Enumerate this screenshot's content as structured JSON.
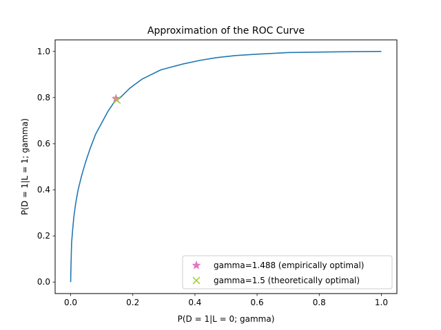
{
  "chart_data": {
    "type": "line",
    "title": "Approximation of the ROC Curve",
    "xlabel": "P(D = 1|L = 0; gamma)",
    "ylabel": "P(D = 1|L = 1; gamma)",
    "xlim": [
      -0.05,
      1.05
    ],
    "ylim": [
      -0.05,
      1.05
    ],
    "xticks": [
      "0.0",
      "0.2",
      "0.4",
      "0.6",
      "0.8",
      "1.0"
    ],
    "yticks": [
      "0.0",
      "0.2",
      "0.4",
      "0.6",
      "0.8",
      "1.0"
    ],
    "grid": false,
    "legend_position": "lower-right",
    "series": [
      {
        "type": "line",
        "color": "#1f77b4",
        "x": [
          0.0,
          0.001,
          0.003,
          0.006,
          0.01,
          0.016,
          0.024,
          0.035,
          0.048,
          0.063,
          0.08,
          0.1,
          0.12,
          0.14,
          0.16,
          0.19,
          0.23,
          0.29,
          0.36,
          0.42,
          0.47,
          0.53,
          0.6,
          0.7,
          0.85,
          1.0
        ],
        "y": [
          0.0,
          0.07,
          0.17,
          0.22,
          0.28,
          0.34,
          0.4,
          0.46,
          0.52,
          0.58,
          0.64,
          0.69,
          0.74,
          0.78,
          0.8,
          0.84,
          0.88,
          0.92,
          0.945,
          0.962,
          0.973,
          0.982,
          0.988,
          0.995,
          0.998,
          1.0
        ]
      },
      {
        "type": "scatter",
        "name": "gamma=1.488 (empirically optimal)",
        "marker": "star",
        "color": "#e377c2",
        "x": [
          0.146
        ],
        "y": [
          0.795
        ]
      },
      {
        "type": "scatter",
        "name": "gamma=1.5 (theoretically optimal)",
        "marker": "x",
        "color": "#9acd32",
        "x": [
          0.149
        ],
        "y": [
          0.789
        ]
      }
    ]
  }
}
